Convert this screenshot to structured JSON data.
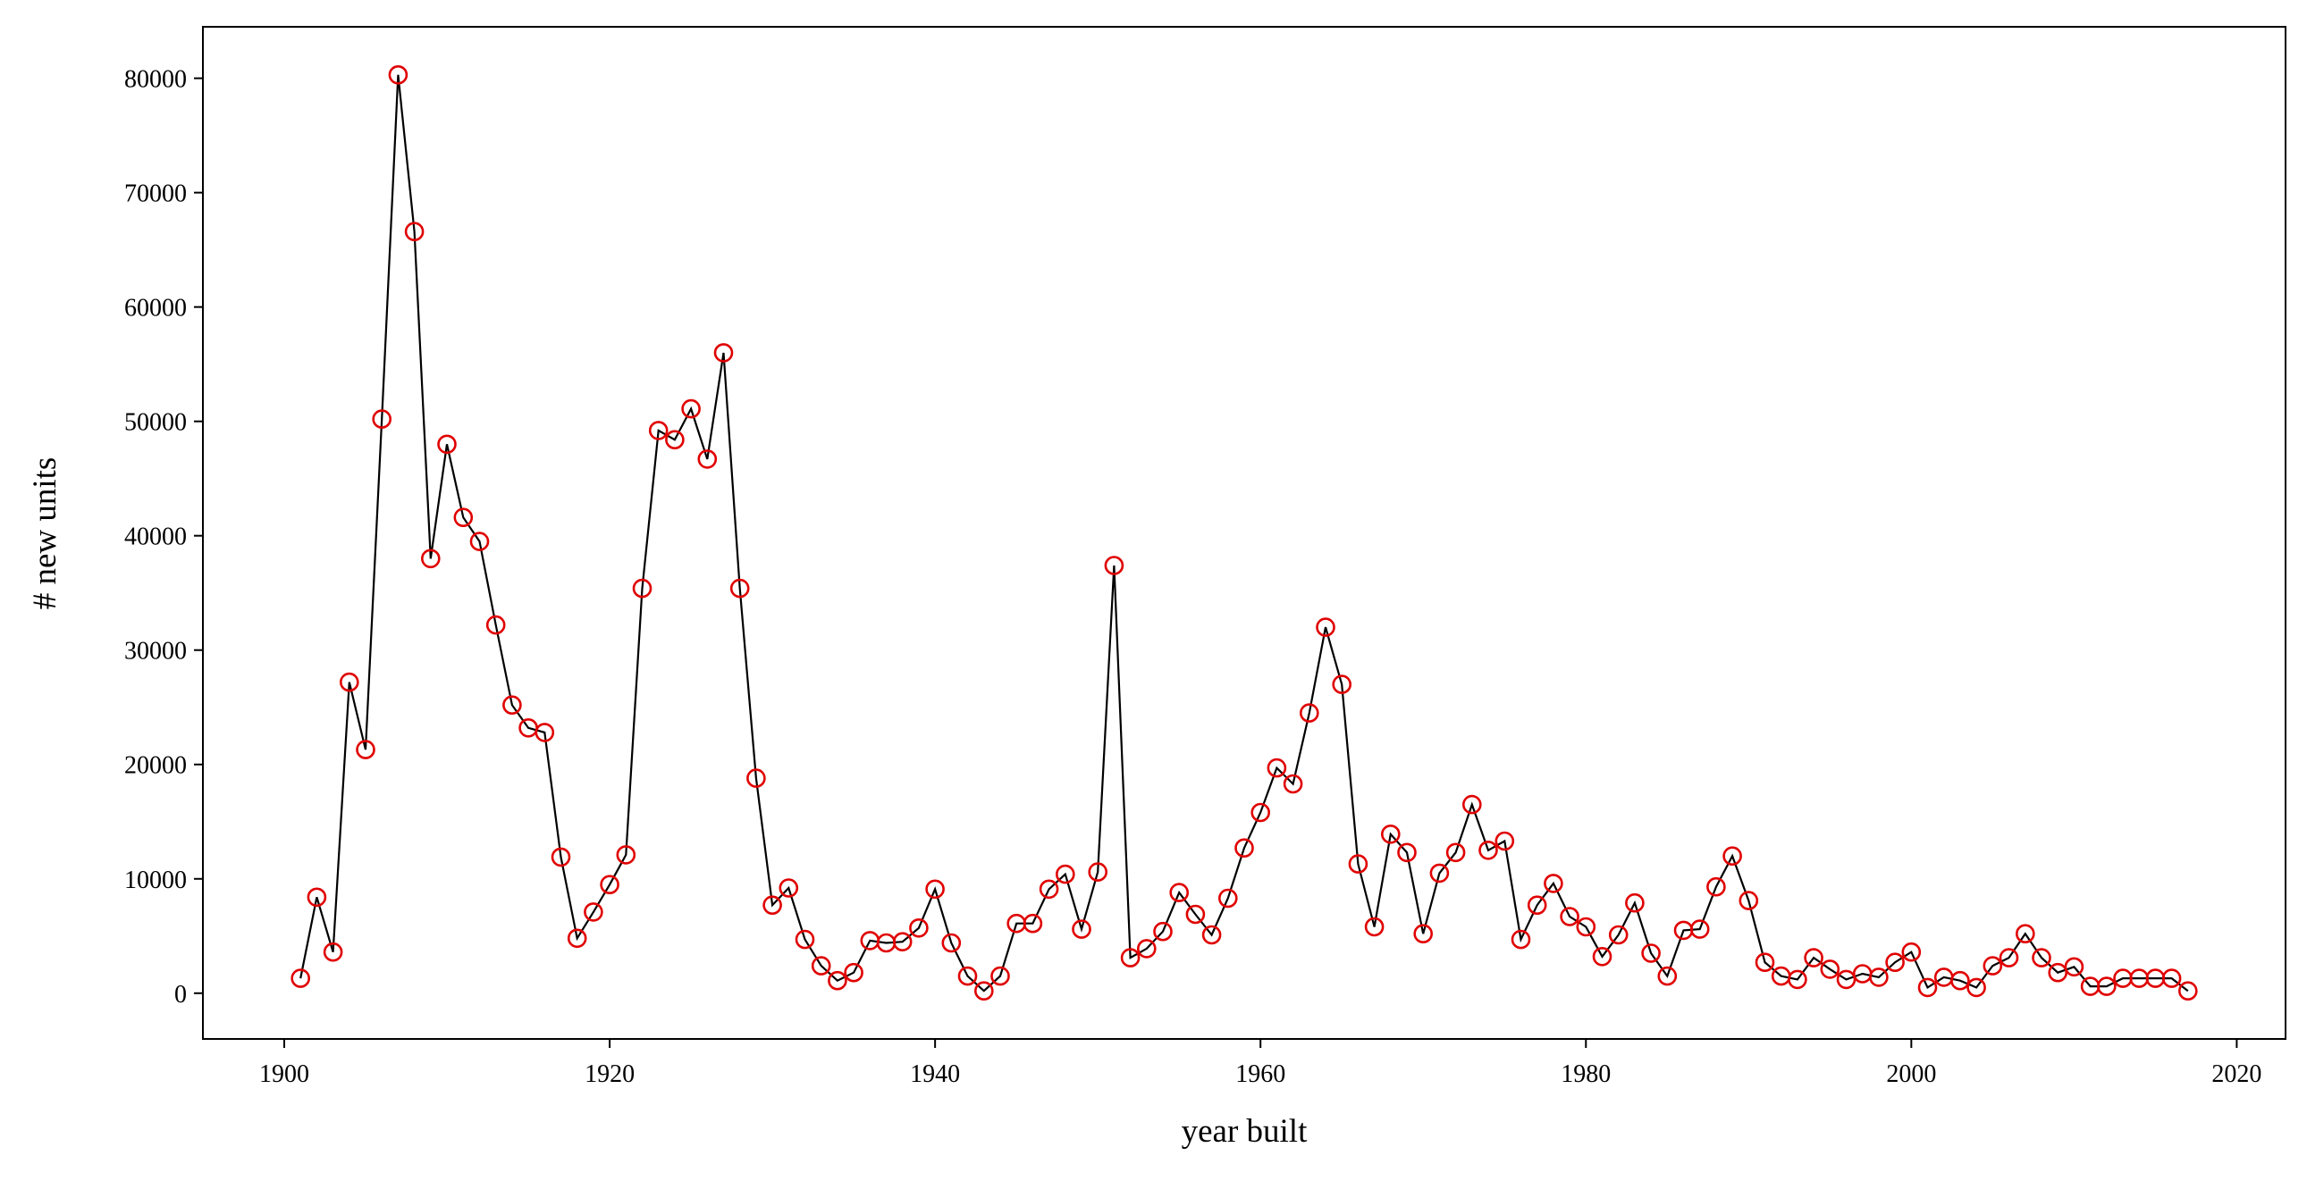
{
  "chart_data": {
    "type": "line",
    "title": "",
    "xlabel": "year built",
    "ylabel": "# new units",
    "xlim": [
      1895,
      2023
    ],
    "ylim": [
      -4000,
      84500
    ],
    "xticks": [
      1900,
      1920,
      1940,
      1960,
      1980,
      2000,
      2020
    ],
    "yticks": [
      0,
      10000,
      20000,
      30000,
      40000,
      50000,
      60000,
      70000,
      80000
    ],
    "grid": false,
    "line_color": "#000000",
    "marker_color": "#e00000",
    "marker": "open-circle",
    "series": [
      {
        "name": "new units",
        "x": [
          1901,
          1902,
          1903,
          1904,
          1905,
          1906,
          1907,
          1908,
          1909,
          1910,
          1911,
          1912,
          1913,
          1914,
          1915,
          1916,
          1917,
          1918,
          1919,
          1920,
          1921,
          1922,
          1923,
          1924,
          1925,
          1926,
          1927,
          1928,
          1929,
          1930,
          1931,
          1932,
          1933,
          1934,
          1935,
          1936,
          1937,
          1938,
          1939,
          1940,
          1941,
          1942,
          1943,
          1944,
          1945,
          1946,
          1947,
          1948,
          1949,
          1950,
          1951,
          1952,
          1953,
          1954,
          1955,
          1956,
          1957,
          1958,
          1959,
          1960,
          1961,
          1962,
          1963,
          1964,
          1965,
          1966,
          1967,
          1968,
          1969,
          1970,
          1971,
          1972,
          1973,
          1974,
          1975,
          1976,
          1977,
          1978,
          1979,
          1980,
          1981,
          1982,
          1983,
          1984,
          1985,
          1986,
          1987,
          1988,
          1989,
          1990,
          1991,
          1992,
          1993,
          1994,
          1995,
          1996,
          1997,
          1998,
          1999,
          2000,
          2001,
          2002,
          2003,
          2004,
          2005,
          2006,
          2007,
          2008,
          2009,
          2010,
          2011,
          2012,
          2013,
          2014,
          2015,
          2016,
          2017
        ],
        "values": [
          1300,
          8400,
          3600,
          27200,
          21300,
          50200,
          80300,
          66600,
          38000,
          48000,
          41600,
          39500,
          32200,
          25200,
          23200,
          22800,
          11900,
          4800,
          7100,
          9500,
          12100,
          35400,
          49200,
          48400,
          51100,
          46700,
          56000,
          35400,
          18800,
          7700,
          9200,
          4700,
          2400,
          1100,
          1800,
          4600,
          4400,
          4500,
          5700,
          9100,
          4400,
          1500,
          200,
          1500,
          6100,
          6100,
          9100,
          10400,
          5600,
          10600,
          37400,
          3100,
          3900,
          5400,
          8800,
          6900,
          5100,
          8300,
          12700,
          15800,
          19700,
          18300,
          24500,
          32000,
          27000,
          11300,
          5800,
          13900,
          12300,
          5200,
          10500,
          12300,
          16500,
          12500,
          13300,
          4700,
          7700,
          9600,
          6700,
          5800,
          3200,
          5100,
          7900,
          3500,
          1500,
          5500,
          5600,
          9300,
          12000,
          8100,
          2700,
          1500,
          1200,
          3100,
          2100,
          1200,
          1700,
          1400,
          2700,
          3600,
          500,
          1400,
          1100,
          500,
          2400,
          3100,
          5200,
          3100,
          1800,
          2300,
          600,
          600,
          1300,
          1300,
          1300,
          1300,
          200
        ]
      }
    ]
  }
}
